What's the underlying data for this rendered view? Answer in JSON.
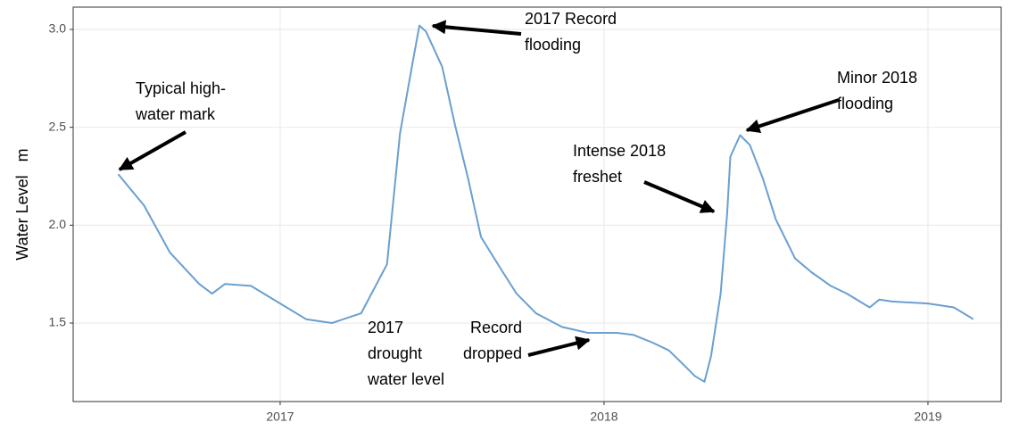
{
  "chart_data": {
    "type": "line",
    "y_label": "Water Level   m",
    "x": [
      2016.5,
      2016.58,
      2016.66,
      2016.75,
      2016.79,
      2016.83,
      2016.91,
      2017.0,
      2017.08,
      2017.16,
      2017.25,
      2017.33,
      2017.37,
      2017.41,
      2017.43,
      2017.45,
      2017.5,
      2017.54,
      2017.58,
      2017.62,
      2017.68,
      2017.73,
      2017.79,
      2017.87,
      2017.95,
      2018.04,
      2018.09,
      2018.15,
      2018.2,
      2018.25,
      2018.28,
      2018.31,
      2018.33,
      2018.36,
      2018.38,
      2018.39,
      2018.42,
      2018.45,
      2018.49,
      2018.53,
      2018.59,
      2018.64,
      2018.7,
      2018.75,
      2018.82,
      2018.85,
      2018.89,
      2019.0,
      2019.08,
      2019.14
    ],
    "values": [
      2.26,
      2.1,
      1.86,
      1.7,
      1.65,
      1.7,
      1.69,
      1.6,
      1.52,
      1.5,
      1.55,
      1.8,
      2.47,
      2.84,
      3.02,
      2.99,
      2.81,
      2.51,
      2.24,
      1.94,
      1.78,
      1.65,
      1.55,
      1.48,
      1.45,
      1.45,
      1.44,
      1.4,
      1.36,
      1.28,
      1.23,
      1.2,
      1.33,
      1.65,
      2.06,
      2.35,
      2.46,
      2.41,
      2.24,
      2.03,
      1.83,
      1.76,
      1.69,
      1.65,
      1.58,
      1.62,
      1.61,
      1.6,
      1.58,
      1.52
    ],
    "color": "#6a9fd0",
    "xlim": [
      2016.361,
      2019.226
    ],
    "xticks": [
      2017,
      2018,
      2019
    ],
    "ylim": [
      1.099,
      3.114
    ],
    "yticks": [
      1.5,
      {
        "value": 2,
        "label": "2.0"
      },
      2.5,
      {
        "value": 3,
        "label": "3.0"
      }
    ],
    "grid": true,
    "annotations": [
      {
        "lines": [
          "Typical high-",
          "water mark"
        ]
      },
      {
        "lines": [
          "2017 Record",
          "flooding"
        ]
      },
      {
        "lines": [
          "Minor 2018",
          "flooding"
        ]
      },
      {
        "lines": [
          "Intense 2018",
          "freshet"
        ]
      },
      {
        "lines": [
          "2017",
          "drought",
          "water level"
        ]
      },
      {
        "lines": [
          "Record",
          "dropped"
        ]
      }
    ]
  }
}
